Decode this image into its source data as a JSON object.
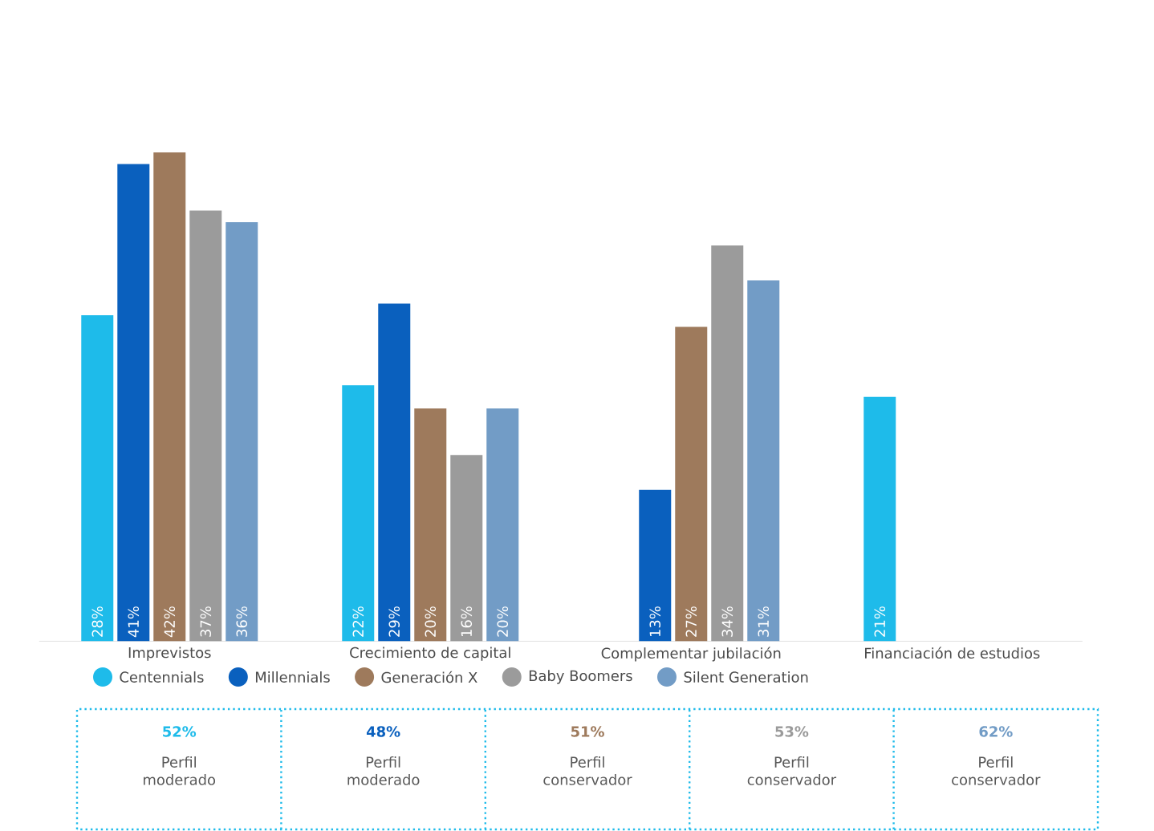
{
  "chart_data": {
    "type": "bar",
    "categories": [
      "Imprevistos",
      "Crecimiento de capital",
      "Complementar jubilación",
      "Financiación de estudios"
    ],
    "series": [
      {
        "name": "Centennials",
        "color": "#1ebbea",
        "values": [
          28,
          22,
          null,
          21
        ],
        "value_labels": [
          "28%",
          "22%",
          null,
          "21%"
        ]
      },
      {
        "name": "Millennials",
        "color": "#0a60be",
        "values": [
          41,
          29,
          13,
          null
        ],
        "value_labels": [
          "41%",
          "29%",
          "13%",
          null
        ]
      },
      {
        "name": "Generación X",
        "color": "#9e7a5c",
        "values": [
          42,
          20,
          27,
          null
        ],
        "value_labels": [
          "42%",
          "20%",
          "27%",
          null
        ]
      },
      {
        "name": "Baby Boomers",
        "color": "#9b9b9b",
        "values": [
          37,
          16,
          34,
          null
        ],
        "value_labels": [
          "37%",
          "16%",
          "34%",
          null
        ]
      },
      {
        "name": "Silent Generation",
        "color": "#729cc6",
        "values": [
          36,
          20,
          31,
          null
        ],
        "value_labels": [
          "36%",
          "20%",
          "31%",
          null
        ]
      }
    ],
    "legend": "bottom",
    "annotations": [
      "52%",
      "Perfil moderado",
      "48%",
      "Perfil moderado",
      "51%",
      "Perfil conservador",
      "53%",
      "Perfil conservador",
      "62%",
      "Perfil conservador"
    ]
  }
}
